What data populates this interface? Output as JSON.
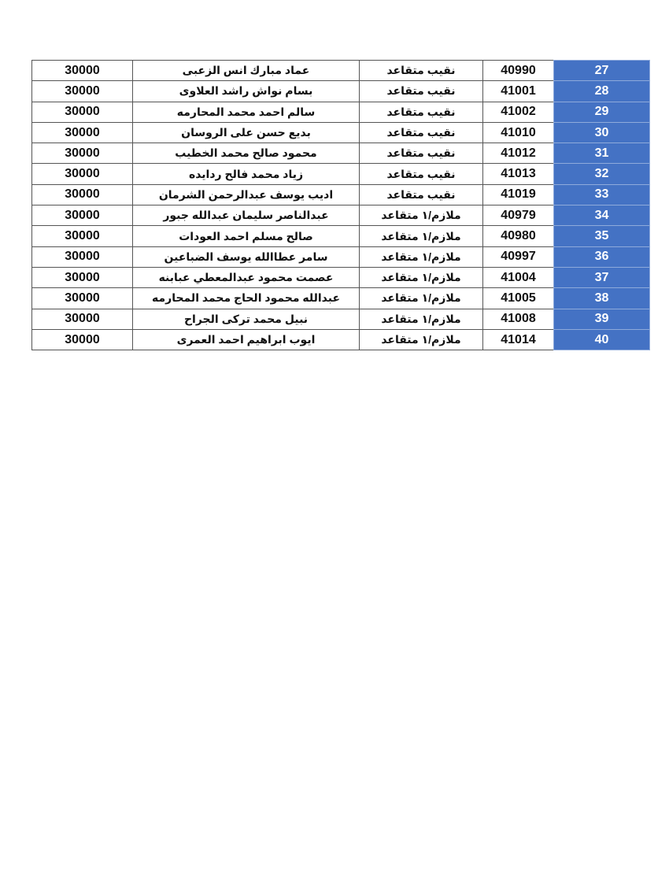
{
  "table": {
    "rows": [
      [
        27,
        40990,
        "نقيب متقاعد",
        "عماد مبارك انس الزعبى",
        30000
      ],
      [
        28,
        41001,
        "نقيب متقاعد",
        "بسام نواش راشد العلاوى",
        30000
      ],
      [
        29,
        41002,
        "نقيب متقاعد",
        "سالم احمد محمد المحارمه",
        30000
      ],
      [
        30,
        41010,
        "نقيب متقاعد",
        "بديع حسن على الروسان",
        30000
      ],
      [
        31,
        41012,
        "نقيب متقاعد",
        "محمود صالح محمد الخطيب",
        30000
      ],
      [
        32,
        41013,
        "نقيب متقاعد",
        "زياد محمد فالح ردايده",
        30000
      ],
      [
        33,
        41019,
        "نقيب متقاعد",
        "اديب يوسف عبدالرحمن الشرمان",
        30000
      ],
      [
        34,
        40979,
        "ملازم/١ متقاعد",
        "عبدالناصر سليمان عبدالله جبور",
        30000
      ],
      [
        35,
        40980,
        "ملازم/١ متقاعد",
        "صالح مسلم احمد العودات",
        30000
      ],
      [
        36,
        40997,
        "ملازم/١ متقاعد",
        "سامر عطاالله يوسف الضباعين",
        30000
      ],
      [
        37,
        41004,
        "ملازم/١ متقاعد",
        "عصمت محمود عبدالمعطي عبابنه",
        30000
      ],
      [
        38,
        41005,
        "ملازم/١ متقاعد",
        "عبدالله محمود الحاج محمد المحارمه",
        30000
      ],
      [
        39,
        41008,
        "ملازم/١ متقاعد",
        "نبيل محمد تركى الجراح",
        30000
      ],
      [
        40,
        41014,
        "ملازم/١ متقاعد",
        "ايوب ابراهيم احمد العمرى",
        30000
      ]
    ]
  }
}
